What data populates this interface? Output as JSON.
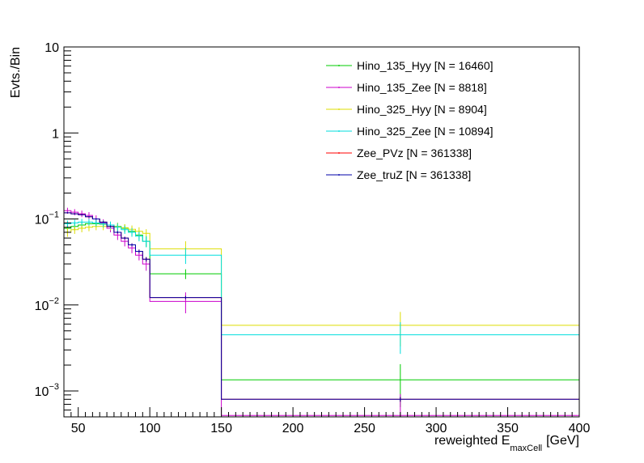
{
  "chart_data": {
    "type": "line",
    "title": "",
    "xlabel": "reweighted E",
    "xlabel_sub": "maxCell",
    "xlabel_unit": "[GeV]",
    "ylabel": "Evts./Bin",
    "xlim": [
      40,
      400
    ],
    "ylim": [
      0.0005,
      10
    ],
    "yscale": "log",
    "grid": false,
    "legend_position": "top-right",
    "x_ticks": [
      50,
      100,
      150,
      200,
      250,
      300,
      350,
      400
    ],
    "x_tick_labels": [
      "50",
      "100",
      "150",
      "200",
      "250",
      "300",
      "350",
      "400"
    ],
    "y_ticks": [
      10,
      1,
      0.1,
      0.01,
      0.001
    ],
    "y_tick_labels": [
      {
        "base": "10",
        "exp": ""
      },
      {
        "base": "1",
        "exp": ""
      },
      {
        "base": "10",
        "exp": "−1"
      },
      {
        "base": "10",
        "exp": "−2"
      },
      {
        "base": "10",
        "exp": "−3"
      }
    ],
    "bin_edges": [
      40,
      45,
      50,
      55,
      60,
      65,
      70,
      75,
      80,
      85,
      90,
      95,
      100,
      150,
      400
    ],
    "series": [
      {
        "name": "Hino_135_Hyy [N = 16460]",
        "color": "#00cc00",
        "values": [
          0.078,
          0.082,
          0.085,
          0.088,
          0.088,
          0.087,
          0.085,
          0.082,
          0.078,
          0.072,
          0.065,
          0.055,
          0.023,
          0.00135
        ],
        "errors": [
          0.008,
          0.008,
          0.008,
          0.008,
          0.008,
          0.008,
          0.008,
          0.008,
          0.008,
          0.008,
          0.008,
          0.008,
          0.003,
          0.0007
        ]
      },
      {
        "name": "Hino_135_Zee [N = 8818]",
        "color": "#cc00cc",
        "values": [
          0.125,
          0.12,
          0.115,
          0.11,
          0.1,
          0.09,
          0.078,
          0.065,
          0.055,
          0.046,
          0.038,
          0.03,
          0.011,
          0.00052
        ],
        "errors": [
          0.01,
          0.01,
          0.01,
          0.01,
          0.01,
          0.009,
          0.008,
          0.008,
          0.007,
          0.006,
          0.005,
          0.005,
          0.003,
          0.0004
        ]
      },
      {
        "name": "Hino_325_Hyy [N = 8904]",
        "color": "#dddd00",
        "values": [
          0.07,
          0.075,
          0.078,
          0.08,
          0.082,
          0.082,
          0.082,
          0.081,
          0.079,
          0.076,
          0.072,
          0.068,
          0.045,
          0.0058
        ],
        "errors": [
          0.008,
          0.008,
          0.008,
          0.008,
          0.008,
          0.008,
          0.008,
          0.008,
          0.008,
          0.008,
          0.008,
          0.008,
          0.01,
          0.0025
        ]
      },
      {
        "name": "Hino_325_Zee [N = 10894]",
        "color": "#00dddd",
        "values": [
          0.088,
          0.09,
          0.092,
          0.092,
          0.09,
          0.088,
          0.085,
          0.08,
          0.075,
          0.07,
          0.063,
          0.055,
          0.038,
          0.0045
        ],
        "errors": [
          0.008,
          0.008,
          0.008,
          0.008,
          0.008,
          0.008,
          0.008,
          0.008,
          0.008,
          0.008,
          0.008,
          0.008,
          0.008,
          0.0018
        ]
      },
      {
        "name": "Zee_PVz [N = 361338]",
        "color": "#ff0000",
        "values": [
          0.118,
          0.115,
          0.112,
          0.106,
          0.1,
          0.092,
          0.082,
          0.07,
          0.06,
          0.05,
          0.042,
          0.034,
          0.0122,
          0.0008
        ],
        "errors": [
          0.002,
          0.002,
          0.002,
          0.002,
          0.002,
          0.002,
          0.002,
          0.002,
          0.002,
          0.002,
          0.002,
          0.002,
          0.0005,
          5e-05
        ]
      },
      {
        "name": "Zee_truZ [N = 361338]",
        "color": "#0000aa",
        "values": [
          0.118,
          0.115,
          0.112,
          0.106,
          0.1,
          0.092,
          0.082,
          0.07,
          0.06,
          0.05,
          0.042,
          0.034,
          0.0122,
          0.0008
        ],
        "errors": [
          0.002,
          0.002,
          0.002,
          0.002,
          0.002,
          0.002,
          0.002,
          0.002,
          0.002,
          0.002,
          0.002,
          0.002,
          0.0005,
          5e-05
        ]
      }
    ]
  }
}
